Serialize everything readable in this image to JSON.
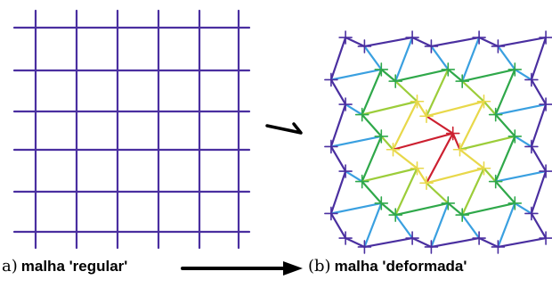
{
  "panel_a": {
    "letter": "a)",
    "caption": "malha 'regular'",
    "grid_color": "#4a2fa0",
    "vertical_lines": 6,
    "horizontal_lines": 6
  },
  "panel_b": {
    "letter": "(b)",
    "caption": "malha 'deformada'",
    "grid_nodes": "7 x 7",
    "color_scale": [
      "#4a2fa0",
      "#3aa0e0",
      "#1fa6a0",
      "#2fa84a",
      "#9ccd3a",
      "#e8d84a",
      "#e88a3a",
      "#cc2030"
    ]
  },
  "arrow_color": "#000000"
}
